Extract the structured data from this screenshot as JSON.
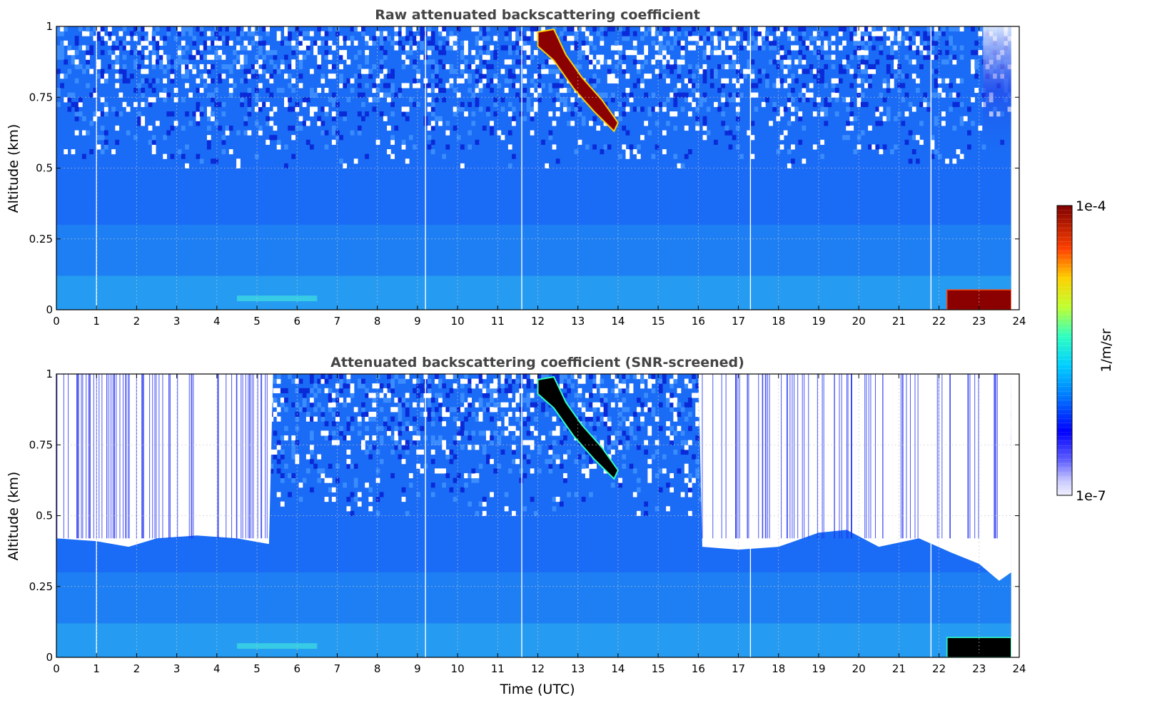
{
  "chart_data": [
    {
      "type": "heatmap",
      "title": "Raw attenuated backscattering coefficient",
      "xlabel": "",
      "ylabel": "Altitude (km)",
      "xlim": [
        0,
        24
      ],
      "ylim": [
        0,
        1
      ],
      "x_ticks": [
        "0",
        "1",
        "2",
        "3",
        "4",
        "5",
        "6",
        "7",
        "8",
        "9",
        "10",
        "11",
        "12",
        "13",
        "14",
        "15",
        "16",
        "17",
        "18",
        "19",
        "20",
        "21",
        "22",
        "23",
        "24"
      ],
      "y_ticks": [
        "0",
        "0.25",
        "0.5",
        "0.75",
        "1"
      ],
      "grid": true,
      "screened": false,
      "features": [
        {
          "kind": "low-level bright layer",
          "time_start": 4.5,
          "time_end": 6.5,
          "altitude": 0.04
        },
        {
          "kind": "descending cloud layer",
          "time_start": 12.0,
          "time_end": 14.0,
          "altitude_start": 0.97,
          "altitude_end": 0.65
        },
        {
          "kind": "near-surface fog layer",
          "time_start": 22.2,
          "time_end": 23.8,
          "altitude_start": 0.0,
          "altitude_end": 0.07
        },
        {
          "kind": "data gap",
          "time_start": 23.8,
          "time_end": 24.0
        }
      ]
    },
    {
      "type": "heatmap",
      "title": "Attenuated backscattering coefficient (SNR-screened)",
      "xlabel": "Time (UTC)",
      "ylabel": "Altitude (km)",
      "xlim": [
        0,
        24
      ],
      "ylim": [
        0,
        1
      ],
      "x_ticks": [
        "0",
        "1",
        "2",
        "3",
        "4",
        "5",
        "6",
        "7",
        "8",
        "9",
        "10",
        "11",
        "12",
        "13",
        "14",
        "15",
        "16",
        "17",
        "18",
        "19",
        "20",
        "21",
        "22",
        "23",
        "24"
      ],
      "y_ticks": [
        "0",
        "0.25",
        "0.5",
        "0.75",
        "1"
      ],
      "grid": true,
      "screened": true,
      "screen_boundary": [
        {
          "t": 0,
          "alt": 0.42
        },
        {
          "t": 1,
          "alt": 0.41
        },
        {
          "t": 1.8,
          "alt": 0.39
        },
        {
          "t": 2.5,
          "alt": 0.42
        },
        {
          "t": 3.5,
          "alt": 0.43
        },
        {
          "t": 4.5,
          "alt": 0.42
        },
        {
          "t": 5.3,
          "alt": 0.4
        },
        {
          "t": 5.4,
          "alt": 1.0
        },
        {
          "t": 16.0,
          "alt": 1.0
        },
        {
          "t": 16.1,
          "alt": 0.39
        },
        {
          "t": 17,
          "alt": 0.38
        },
        {
          "t": 18,
          "alt": 0.39
        },
        {
          "t": 19,
          "alt": 0.44
        },
        {
          "t": 19.7,
          "alt": 0.45
        },
        {
          "t": 20.5,
          "alt": 0.39
        },
        {
          "t": 21.5,
          "alt": 0.42
        },
        {
          "t": 22.3,
          "alt": 0.37
        },
        {
          "t": 23,
          "alt": 0.33
        },
        {
          "t": 23.5,
          "alt": 0.27
        },
        {
          "t": 23.8,
          "alt": 0.3
        }
      ]
    }
  ],
  "colorbar": {
    "label": "1/m/sr",
    "max_label": "1e-4",
    "min_label": "1e-7",
    "scale": "log"
  },
  "colors": {
    "background_blue": "#1a6bf5",
    "dark_blue": "#0a2ad8",
    "light_blue": "#2aa6f0",
    "cyan": "#3fe0e0",
    "cloud_red": "#8b0000",
    "screened_cloud": "#000000"
  }
}
